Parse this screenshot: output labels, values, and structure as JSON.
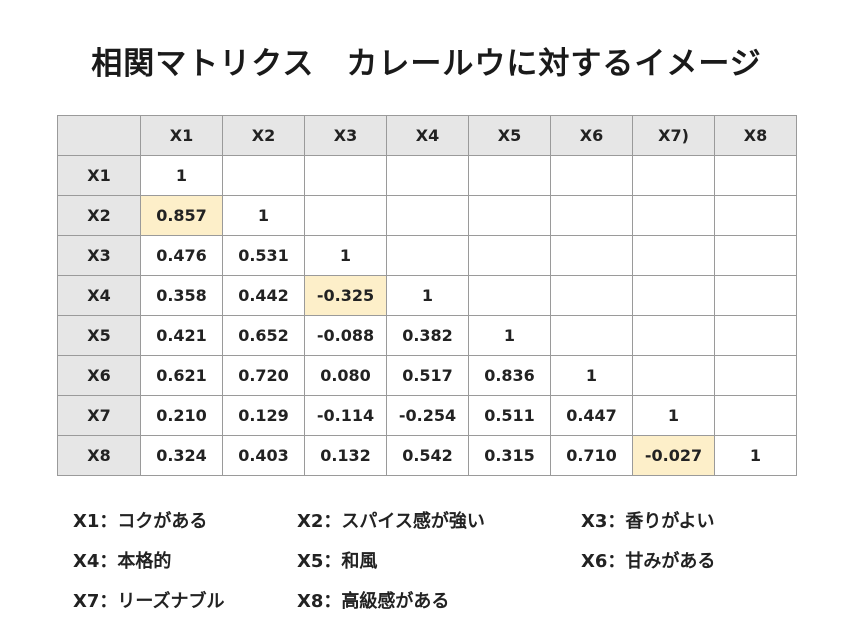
{
  "title": "相関マトリクス　カレールウに対するイメージ",
  "matrix": {
    "corner": "",
    "columns": [
      "X1",
      "X2",
      "X3",
      "X4",
      "X5",
      "X6",
      "X7)",
      "X8"
    ],
    "highlight_color": "#fdefc9",
    "rows": [
      {
        "label": "X1",
        "cells": [
          "1",
          "",
          "",
          "",
          "",
          "",
          "",
          ""
        ]
      },
      {
        "label": "X2",
        "cells": [
          "0.857",
          "1",
          "",
          "",
          "",
          "",
          "",
          ""
        ]
      },
      {
        "label": "X3",
        "cells": [
          "0.476",
          "0.531",
          "1",
          "",
          "",
          "",
          "",
          ""
        ]
      },
      {
        "label": "X4",
        "cells": [
          "0.358",
          "0.442",
          "-0.325",
          "1",
          "",
          "",
          "",
          ""
        ]
      },
      {
        "label": "X5",
        "cells": [
          "0.421",
          "0.652",
          "-0.088",
          "0.382",
          "1",
          "",
          "",
          ""
        ]
      },
      {
        "label": "X6",
        "cells": [
          "0.621",
          "0.720",
          "0.080",
          "0.517",
          "0.836",
          "1",
          "",
          ""
        ]
      },
      {
        "label": "X7",
        "cells": [
          "0.210",
          "0.129",
          "-0.114",
          "-0.254",
          "0.511",
          "0.447",
          "1",
          ""
        ]
      },
      {
        "label": "X8",
        "cells": [
          "0.324",
          "0.403",
          "0.132",
          "0.542",
          "0.315",
          "0.710",
          "-0.027",
          "1"
        ]
      }
    ],
    "highlighted": [
      [
        1,
        0
      ],
      [
        3,
        2
      ],
      [
        7,
        6
      ]
    ]
  },
  "legend": [
    [
      "X1：コクがある",
      "X2：スパイス感が強い",
      "X3：香りがよい"
    ],
    [
      "X4：本格的",
      "X5：和風",
      "X6：甘みがある"
    ],
    [
      "X7：リーズナブル",
      "X8：高級感がある",
      ""
    ]
  ]
}
